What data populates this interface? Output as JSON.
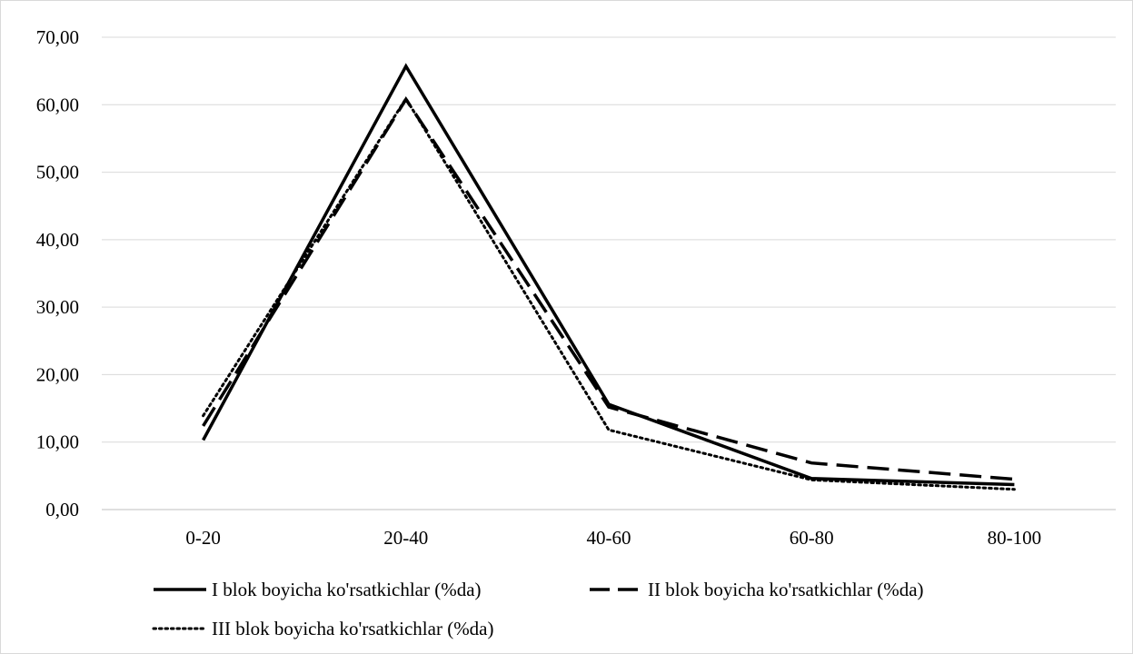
{
  "chart_data": {
    "type": "line",
    "categories": [
      "0-20",
      "20-40",
      "40-60",
      "60-80",
      "80-100"
    ],
    "y_ticks": [
      "0,00",
      "10,00",
      "20,00",
      "30,00",
      "40,00",
      "50,00",
      "60,00",
      "70,00"
    ],
    "ylim": [
      0,
      70
    ],
    "grid": "horizontal",
    "legend_position": "bottom",
    "series": [
      {
        "name": "I blok boyicha ko'rsatkichlar (%da)",
        "style": "solid",
        "color": "#000000",
        "values": [
          10.3,
          65.7,
          15.6,
          4.6,
          3.7
        ]
      },
      {
        "name": "II blok boyicha ko'rsatkichlar (%da)",
        "style": "dashed",
        "color": "#000000",
        "values": [
          12.4,
          60.8,
          15.2,
          6.9,
          4.5
        ]
      },
      {
        "name": "III blok boyicha ko'rsatkichlar (%da)",
        "style": "dotted",
        "color": "#000000",
        "values": [
          13.9,
          60.9,
          11.8,
          4.4,
          3.0
        ]
      }
    ]
  }
}
